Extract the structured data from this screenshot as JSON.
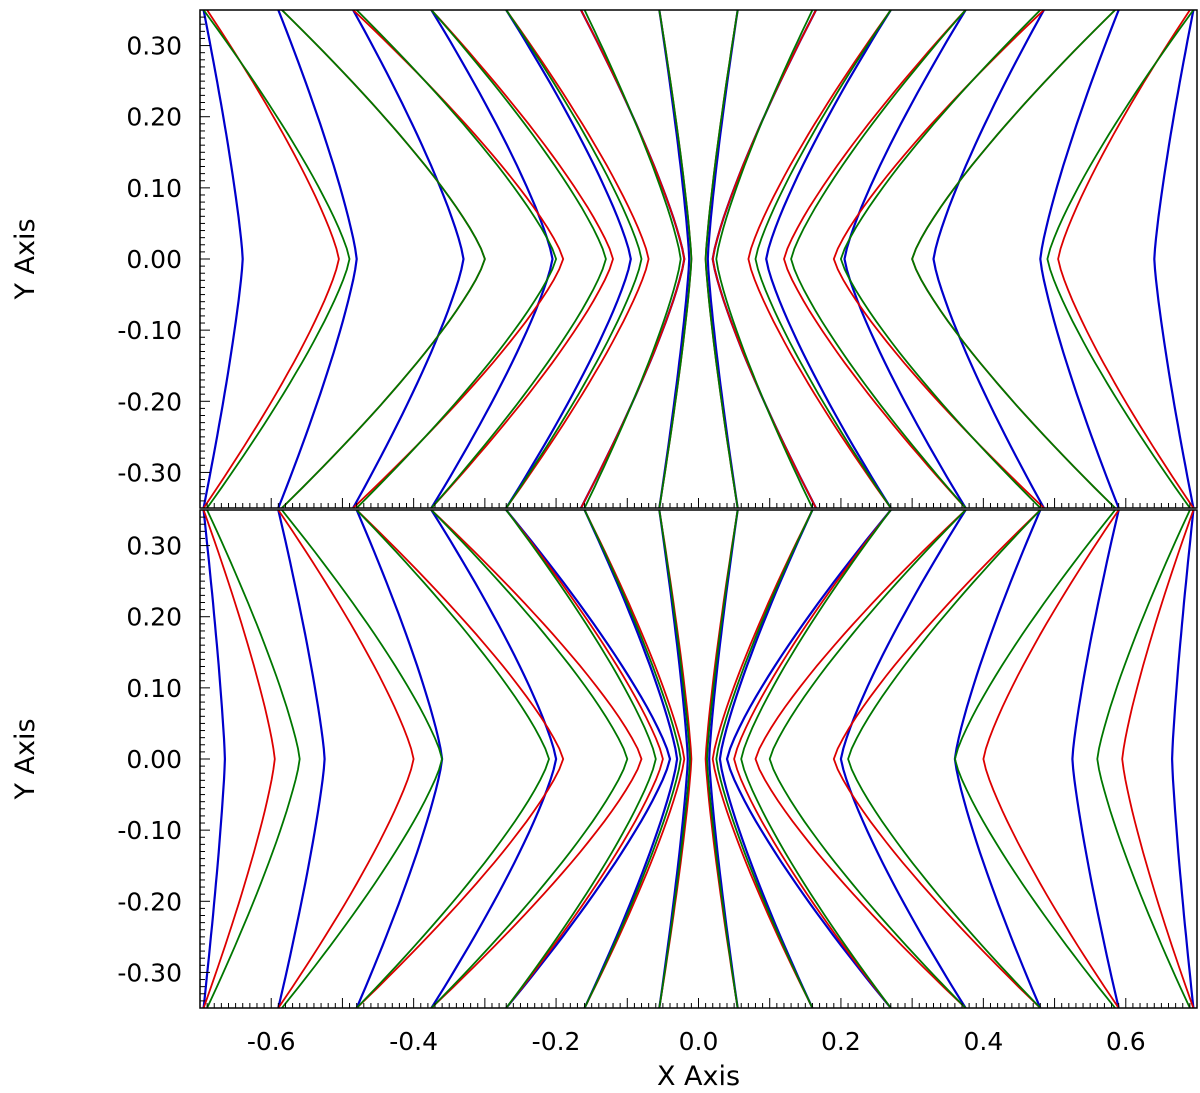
{
  "chart_data": [
    {
      "type": "line",
      "panel": "top",
      "xlim": [
        -0.7,
        0.7
      ],
      "ylim": [
        -0.35,
        0.35
      ],
      "ylabel": "Y Axis",
      "xlabel": "",
      "grid": false,
      "legend": "none",
      "yticks": [
        "0.30",
        "0.20",
        "0.10",
        "0.00",
        "-0.10",
        "-0.20",
        "-0.30"
      ],
      "ytick_values": [
        0.3,
        0.2,
        0.1,
        0.0,
        -0.1,
        -0.2,
        -0.3
      ],
      "xticks": [],
      "description_of_series": "families of field lines: [x_at_y=-0.35, x_at_y=0, x_at_y=0.35]",
      "series": [
        {
          "color": "#0000cc",
          "lines": [
            [
              -0.695,
              -0.64,
              -0.695
            ],
            [
              -0.59,
              -0.48,
              -0.59
            ],
            [
              -0.485,
              -0.33,
              -0.485
            ],
            [
              -0.375,
              -0.205,
              -0.375
            ],
            [
              -0.27,
              -0.095,
              -0.27
            ],
            [
              -0.165,
              -0.02,
              -0.165
            ],
            [
              -0.055,
              -0.013,
              -0.055
            ],
            [
              0.055,
              0.013,
              0.055
            ],
            [
              0.165,
              0.02,
              0.165
            ],
            [
              0.27,
              0.095,
              0.27
            ],
            [
              0.375,
              0.205,
              0.375
            ],
            [
              0.485,
              0.33,
              0.485
            ],
            [
              0.59,
              0.48,
              0.59
            ],
            [
              0.695,
              0.64,
              0.695
            ]
          ]
        },
        {
          "color": "#dd0000",
          "lines": [
            [
              -0.695,
              -0.505,
              -0.69
            ],
            [
              -0.585,
              -0.3,
              -0.585
            ],
            [
              -0.485,
              -0.19,
              -0.485
            ],
            [
              -0.375,
              -0.12,
              -0.375
            ],
            [
              -0.27,
              -0.07,
              -0.27
            ],
            [
              -0.165,
              -0.02,
              -0.165
            ],
            [
              -0.055,
              -0.01,
              -0.055
            ],
            [
              0.055,
              0.01,
              0.055
            ],
            [
              0.165,
              0.02,
              0.165
            ],
            [
              0.27,
              0.07,
              0.27
            ],
            [
              0.375,
              0.12,
              0.375
            ],
            [
              0.485,
              0.19,
              0.485
            ],
            [
              0.585,
              0.3,
              0.585
            ],
            [
              0.695,
              0.505,
              0.69
            ]
          ]
        },
        {
          "color": "#007700",
          "lines": [
            [
              -0.69,
              -0.49,
              -0.695
            ],
            [
              -0.585,
              -0.3,
              -0.585
            ],
            [
              -0.48,
              -0.2,
              -0.48
            ],
            [
              -0.375,
              -0.13,
              -0.375
            ],
            [
              -0.27,
              -0.08,
              -0.27
            ],
            [
              -0.16,
              -0.025,
              -0.16
            ],
            [
              -0.055,
              -0.01,
              -0.055
            ],
            [
              0.055,
              0.01,
              0.055
            ],
            [
              0.16,
              0.025,
              0.16
            ],
            [
              0.27,
              0.08,
              0.27
            ],
            [
              0.375,
              0.13,
              0.375
            ],
            [
              0.48,
              0.2,
              0.48
            ],
            [
              0.585,
              0.3,
              0.585
            ],
            [
              0.69,
              0.49,
              0.695
            ]
          ]
        }
      ]
    },
    {
      "type": "line",
      "panel": "bottom",
      "xlim": [
        -0.7,
        0.7
      ],
      "ylim": [
        -0.35,
        0.35
      ],
      "ylabel": "Y Axis",
      "xlabel": "X Axis",
      "grid": false,
      "legend": "none",
      "yticks": [
        "0.30",
        "0.20",
        "0.10",
        "0.00",
        "-0.10",
        "-0.20",
        "-0.30"
      ],
      "ytick_values": [
        0.3,
        0.2,
        0.1,
        0.0,
        -0.1,
        -0.2,
        -0.3
      ],
      "xticks": [
        "-0.6",
        "-0.4",
        "-0.2",
        "0.0",
        "0.2",
        "0.4",
        "0.6"
      ],
      "xtick_values": [
        -0.6,
        -0.4,
        -0.2,
        0.0,
        0.2,
        0.4,
        0.6
      ],
      "series": [
        {
          "color": "#0000cc",
          "lines": [
            [
              -0.695,
              -0.665,
              -0.695
            ],
            [
              -0.59,
              -0.525,
              -0.59
            ],
            [
              -0.48,
              -0.36,
              -0.48
            ],
            [
              -0.375,
              -0.2,
              -0.375
            ],
            [
              -0.27,
              -0.04,
              -0.27
            ],
            [
              -0.16,
              -0.03,
              -0.16
            ],
            [
              -0.055,
              -0.015,
              -0.055
            ],
            [
              0.055,
              0.015,
              0.055
            ],
            [
              0.16,
              0.03,
              0.16
            ],
            [
              0.27,
              0.04,
              0.27
            ],
            [
              0.375,
              0.2,
              0.375
            ],
            [
              0.48,
              0.36,
              0.48
            ],
            [
              0.59,
              0.525,
              0.59
            ],
            [
              0.695,
              0.665,
              0.695
            ]
          ]
        },
        {
          "color": "#dd0000",
          "lines": [
            [
              -0.695,
              -0.595,
              -0.695
            ],
            [
              -0.59,
              -0.4,
              -0.59
            ],
            [
              -0.48,
              -0.19,
              -0.48
            ],
            [
              -0.375,
              -0.08,
              -0.375
            ],
            [
              -0.27,
              -0.05,
              -0.27
            ],
            [
              -0.16,
              -0.02,
              -0.16
            ],
            [
              -0.055,
              -0.01,
              -0.055
            ],
            [
              0.055,
              0.01,
              0.055
            ],
            [
              0.16,
              0.02,
              0.16
            ],
            [
              0.27,
              0.05,
              0.27
            ],
            [
              0.375,
              0.08,
              0.375
            ],
            [
              0.48,
              0.19,
              0.48
            ],
            [
              0.59,
              0.4,
              0.59
            ],
            [
              0.695,
              0.595,
              0.695
            ]
          ]
        },
        {
          "color": "#007700",
          "lines": [
            [
              -0.69,
              -0.56,
              -0.69
            ],
            [
              -0.585,
              -0.36,
              -0.585
            ],
            [
              -0.48,
              -0.21,
              -0.48
            ],
            [
              -0.375,
              -0.1,
              -0.375
            ],
            [
              -0.27,
              -0.06,
              -0.27
            ],
            [
              -0.16,
              -0.025,
              -0.16
            ],
            [
              -0.055,
              -0.012,
              -0.055
            ],
            [
              0.055,
              0.012,
              0.055
            ],
            [
              0.16,
              0.025,
              0.16
            ],
            [
              0.27,
              0.06,
              0.27
            ],
            [
              0.375,
              0.1,
              0.375
            ],
            [
              0.48,
              0.21,
              0.48
            ],
            [
              0.585,
              0.36,
              0.585
            ],
            [
              0.69,
              0.56,
              0.69
            ]
          ]
        }
      ]
    }
  ]
}
